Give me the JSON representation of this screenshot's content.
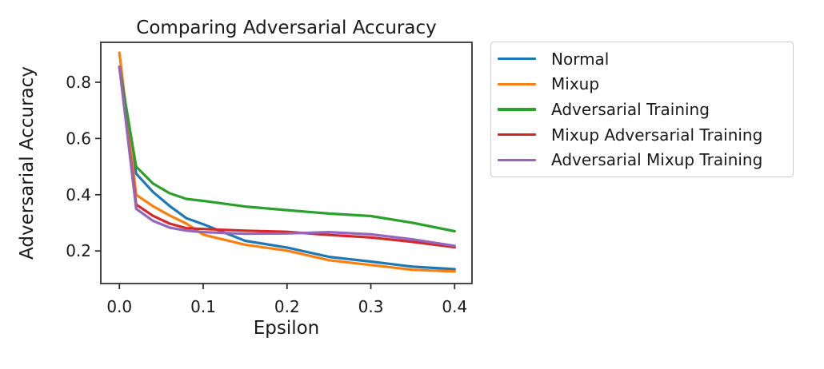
{
  "chart_data": {
    "type": "line",
    "title": "Comparing Adversarial Accuracy",
    "xlabel": "Epsilon",
    "ylabel": "Adversarial Accuracy",
    "x": [
      0,
      0.02,
      0.04,
      0.06,
      0.08,
      0.1,
      0.15,
      0.2,
      0.25,
      0.3,
      0.35,
      0.4
    ],
    "series": [
      {
        "name": "Normal",
        "color": "#1f77b4",
        "values": [
          0.85,
          0.475,
          0.41,
          0.36,
          0.316,
          0.295,
          0.236,
          0.212,
          0.179,
          0.162,
          0.144,
          0.135
        ]
      },
      {
        "name": "Mixup",
        "color": "#ff7f0e",
        "values": [
          0.905,
          0.4,
          0.359,
          0.326,
          0.297,
          0.258,
          0.222,
          0.201,
          0.167,
          0.15,
          0.133,
          0.127
        ]
      },
      {
        "name": "Adversarial Training",
        "color": "#2ca02c",
        "values": [
          0.855,
          0.5,
          0.44,
          0.405,
          0.385,
          0.378,
          0.358,
          0.345,
          0.333,
          0.324,
          0.3,
          0.27
        ]
      },
      {
        "name": "Mixup Adversarial Training",
        "color": "#d62728",
        "values": [
          0.855,
          0.365,
          0.325,
          0.297,
          0.281,
          0.278,
          0.272,
          0.268,
          0.257,
          0.248,
          0.232,
          0.213
        ]
      },
      {
        "name": "Adversarial Mixup Training",
        "color": "#9467bd",
        "values": [
          0.855,
          0.35,
          0.307,
          0.283,
          0.272,
          0.267,
          0.261,
          0.262,
          0.267,
          0.259,
          0.241,
          0.218
        ]
      }
    ],
    "xticks": [
      0.0,
      0.1,
      0.2,
      0.3,
      0.4
    ],
    "xtick_labels": [
      "0.0",
      "0.1",
      "0.2",
      "0.3",
      "0.4"
    ],
    "yticks": [
      0.2,
      0.4,
      0.6,
      0.8
    ],
    "ytick_labels": [
      "0.2",
      "0.4",
      "0.6",
      "0.8"
    ],
    "xlim": [
      -0.0222,
      0.4207
    ],
    "ylim": [
      0.084,
      0.942
    ],
    "grid": false,
    "legend_position": "outside-right",
    "line_width": 3.2
  },
  "colors": {
    "background": "#ffffff",
    "text": "#1a1a1a",
    "spine": "#262626",
    "legend_border": "#cccccc"
  }
}
